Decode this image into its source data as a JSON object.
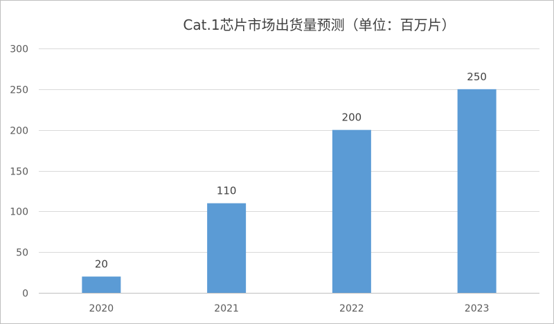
{
  "chart_data": {
    "type": "bar",
    "title": "Cat.1芯片市场出货量预测（单位：百万片）",
    "categories": [
      "2020",
      "2021",
      "2022",
      "2023"
    ],
    "values": [
      20,
      110,
      200,
      250
    ],
    "data_labels": [
      "20",
      "110",
      "200",
      "250"
    ],
    "xlabel": "",
    "ylabel": "",
    "ylim": [
      0,
      300
    ],
    "yticks": [
      0,
      50,
      100,
      150,
      200,
      250,
      300
    ],
    "grid": true,
    "legend": "none",
    "bar_color": "#5b9bd5"
  }
}
